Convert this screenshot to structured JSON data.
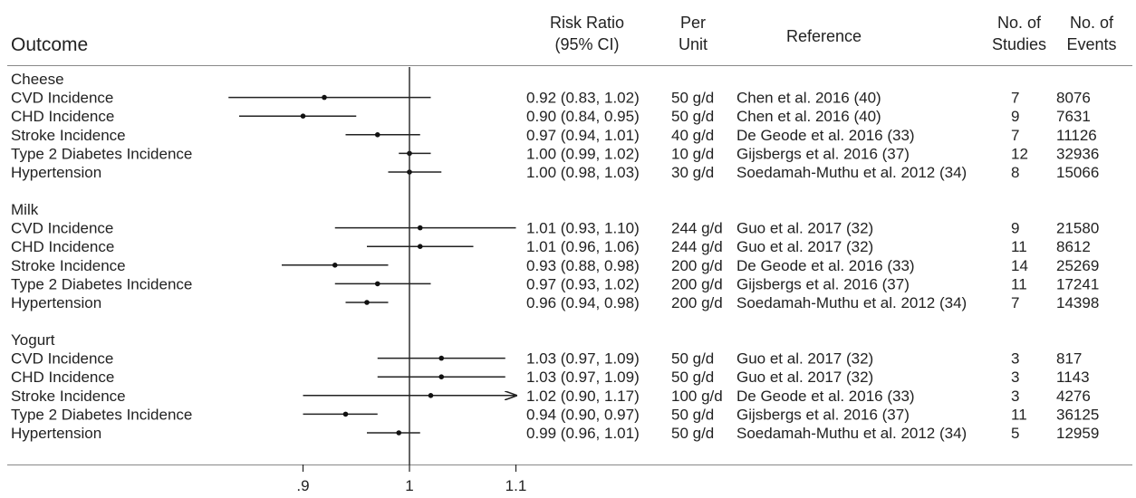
{
  "headers": {
    "outcome": "Outcome",
    "risk_ratio_1": "Risk Ratio",
    "risk_ratio_2": "(95% CI)",
    "per_1": "Per",
    "per_2": "Unit",
    "reference": "Reference",
    "studies_1": "No. of",
    "studies_2": "Studies",
    "events_1": "No. of",
    "events_2": "Events"
  },
  "chart_data": {
    "type": "forest",
    "title": "",
    "xlabel": "",
    "ylabel": "",
    "xlim": [
      0.83,
      1.1
    ],
    "xticks": [
      0.9,
      1.0,
      1.1
    ],
    "xtick_labels": [
      ".9",
      "1",
      "1.1"
    ],
    "reference_line": 1.0,
    "groups": [
      {
        "name": "Cheese",
        "rows": [
          {
            "outcome": "CVD Incidence",
            "rr": 0.92,
            "lo": 0.83,
            "hi": 1.02,
            "ci_text": "0.92 (0.83, 1.02)",
            "unit": "50 g/d",
            "reference": "Chen et al. 2016 (40)",
            "studies": "7",
            "events": "8076"
          },
          {
            "outcome": "CHD Incidence",
            "rr": 0.9,
            "lo": 0.84,
            "hi": 0.95,
            "ci_text": "0.90 (0.84, 0.95)",
            "unit": "50 g/d",
            "reference": "Chen et al. 2016 (40)",
            "studies": "9",
            "events": "7631"
          },
          {
            "outcome": "Stroke Incidence",
            "rr": 0.97,
            "lo": 0.94,
            "hi": 1.01,
            "ci_text": "0.97 (0.94, 1.01)",
            "unit": "40 g/d",
            "reference": "De Geode et al. 2016 (33)",
            "studies": "7",
            "events": "11126"
          },
          {
            "outcome": "Type 2 Diabetes Incidence",
            "rr": 1.0,
            "lo": 0.99,
            "hi": 1.02,
            "ci_text": "1.00 (0.99, 1.02)",
            "unit": "10 g/d",
            "reference": "Gijsbergs et al. 2016 (37)",
            "studies": "12",
            "events": "32936"
          },
          {
            "outcome": "Hypertension",
            "rr": 1.0,
            "lo": 0.98,
            "hi": 1.03,
            "ci_text": "1.00 (0.98, 1.03)",
            "unit": "30 g/d",
            "reference": "Soedamah-Muthu et al. 2012 (34)",
            "studies": "8",
            "events": "15066"
          }
        ]
      },
      {
        "name": "Milk",
        "rows": [
          {
            "outcome": "CVD Incidence",
            "rr": 1.01,
            "lo": 0.93,
            "hi": 1.1,
            "ci_text": "1.01 (0.93, 1.10)",
            "unit": "244 g/d",
            "reference": "Guo et al. 2017 (32)",
            "studies": "9",
            "events": "21580"
          },
          {
            "outcome": "CHD Incidence",
            "rr": 1.01,
            "lo": 0.96,
            "hi": 1.06,
            "ci_text": "1.01 (0.96, 1.06)",
            "unit": "244 g/d",
            "reference": "Guo et al. 2017 (32)",
            "studies": "11",
            "events": "8612"
          },
          {
            "outcome": "Stroke Incidence",
            "rr": 0.93,
            "lo": 0.88,
            "hi": 0.98,
            "ci_text": "0.93 (0.88, 0.98)",
            "unit": "200 g/d",
            "reference": "De Geode et al. 2016 (33)",
            "studies": "14",
            "events": "25269"
          },
          {
            "outcome": "Type 2 Diabetes Incidence",
            "rr": 0.97,
            "lo": 0.93,
            "hi": 1.02,
            "ci_text": "0.97 (0.93, 1.02)",
            "unit": "200 g/d",
            "reference": "Gijsbergs et al. 2016 (37)",
            "studies": "11",
            "events": "17241"
          },
          {
            "outcome": "Hypertension",
            "rr": 0.96,
            "lo": 0.94,
            "hi": 0.98,
            "ci_text": "0.96 (0.94, 0.98)",
            "unit": "200 g/d",
            "reference": "Soedamah-Muthu et al. 2012 (34)",
            "studies": "7",
            "events": "14398"
          }
        ]
      },
      {
        "name": "Yogurt",
        "rows": [
          {
            "outcome": "CVD Incidence",
            "rr": 1.03,
            "lo": 0.97,
            "hi": 1.09,
            "ci_text": "1.03 (0.97, 1.09)",
            "unit": "50 g/d",
            "reference": "Guo et al. 2017 (32)",
            "studies": "3",
            "events": "817"
          },
          {
            "outcome": "CHD Incidence",
            "rr": 1.03,
            "lo": 0.97,
            "hi": 1.09,
            "ci_text": "1.03 (0.97, 1.09)",
            "unit": "50 g/d",
            "reference": "Guo et al. 2017 (32)",
            "studies": "3",
            "events": "1143"
          },
          {
            "outcome": "Stroke Incidence",
            "rr": 1.02,
            "lo": 0.9,
            "hi": 1.17,
            "ci_text": "1.02 (0.90, 1.17)",
            "unit": "100 g/d",
            "reference": "De Geode et al. 2016 (33)",
            "studies": "3",
            "events": "4276"
          },
          {
            "outcome": "Type 2 Diabetes Incidence",
            "rr": 0.94,
            "lo": 0.9,
            "hi": 0.97,
            "ci_text": "0.94 (0.90, 0.97)",
            "unit": "50 g/d",
            "reference": "Gijsbergs et al. 2016 (37)",
            "studies": "11",
            "events": "36125"
          },
          {
            "outcome": "Hypertension",
            "rr": 0.99,
            "lo": 0.96,
            "hi": 1.01,
            "ci_text": "0.99 (0.96, 1.01)",
            "unit": "50 g/d",
            "reference": "Soedamah-Muthu et al. 2012 (34)",
            "studies": "5",
            "events": "12959"
          }
        ]
      }
    ]
  }
}
